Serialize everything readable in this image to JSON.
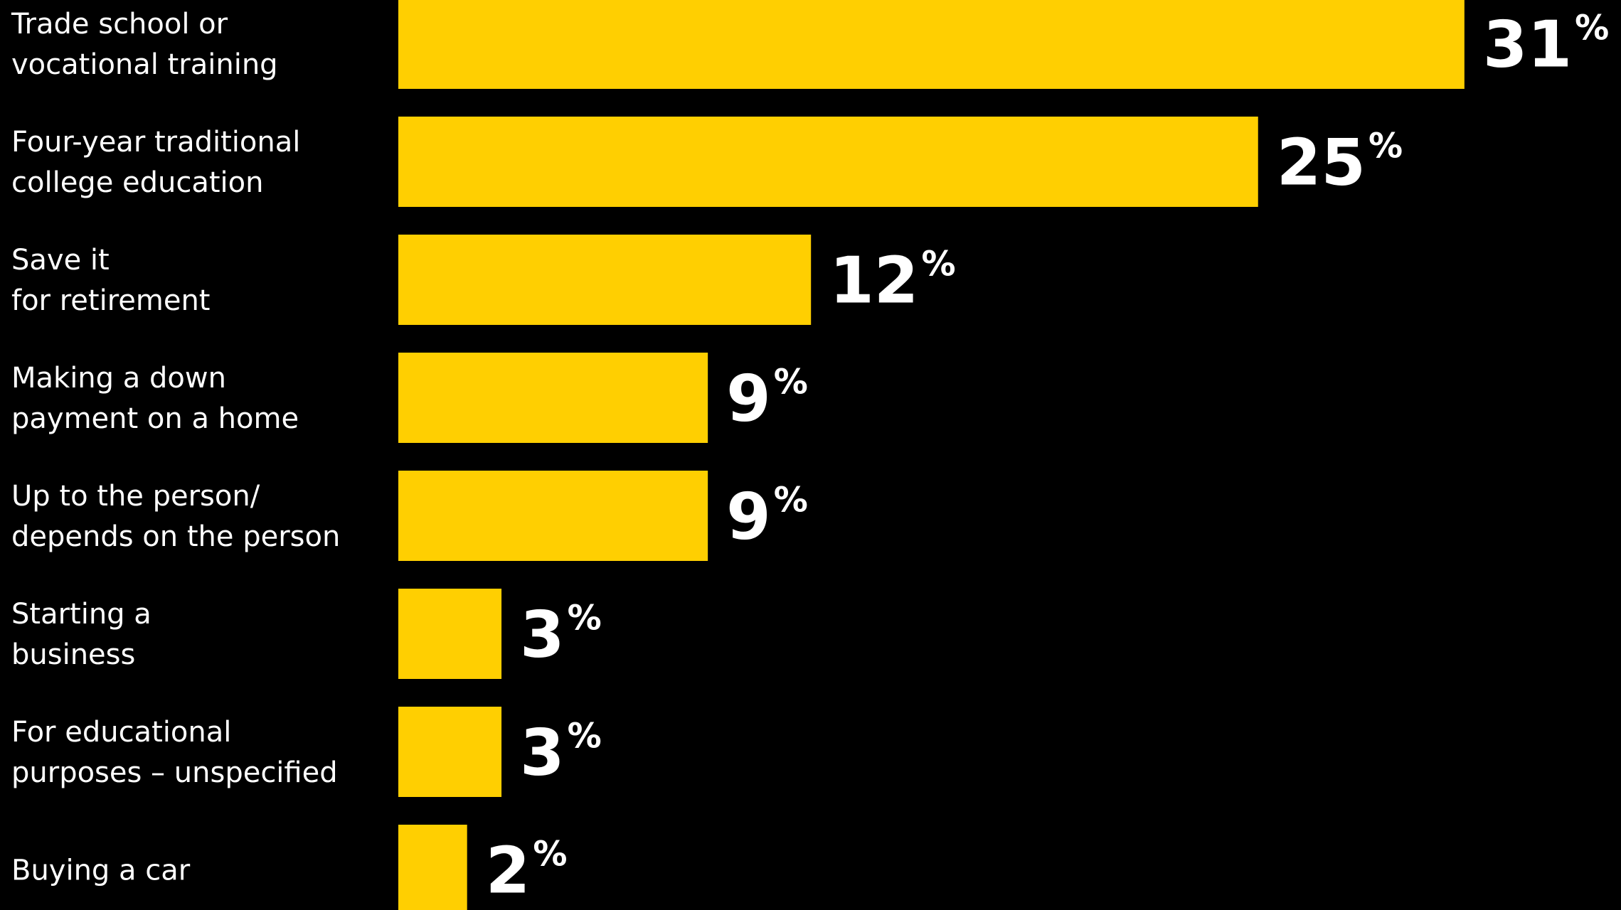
{
  "chart_data": {
    "type": "bar",
    "orientation": "horizontal",
    "categories": [
      [
        "Trade school or",
        "vocational training"
      ],
      [
        "Four-year traditional",
        "college education"
      ],
      [
        "Save it",
        "for retirement"
      ],
      [
        "Making a down",
        "payment on a home"
      ],
      [
        "Up to the person/",
        "depends on the person"
      ],
      [
        "Starting a",
        "business"
      ],
      [
        "For educational",
        "purposes – unspecified"
      ],
      [
        "Buying a car"
      ]
    ],
    "values": [
      31,
      25,
      12,
      9,
      9,
      3,
      3,
      2
    ],
    "value_labels": [
      "31",
      "25",
      "12",
      "9",
      "9",
      "3",
      "3",
      "2"
    ],
    "value_suffix": "%",
    "title": "",
    "xlabel": "",
    "ylabel": "",
    "grid": false,
    "legend": "none",
    "colors": {
      "background": "#000000",
      "bar": "#FFCF01",
      "text": "#FFFFFF"
    }
  }
}
